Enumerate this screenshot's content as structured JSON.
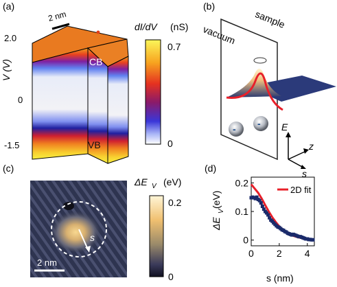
{
  "panel_a": {
    "label": "(a)",
    "scalebar": "2 nm",
    "ylabel": "V (V)",
    "yticks": [
      "2.0",
      "0",
      "-1.5"
    ],
    "cb_label": "CB",
    "vb_label": "VB",
    "colorbar_title": "dI/dV",
    "colorbar_unit": "(nS)",
    "colorbar_max": "0.7",
    "colorbar_min": "0"
  },
  "panel_b": {
    "label": "(b)",
    "vacuum": "vacuum",
    "sample": "sample",
    "charge1": "-",
    "charge2": "-",
    "axis_E": "E",
    "axis_z": "z",
    "axis_s": "s"
  },
  "panel_c": {
    "label": "(c)",
    "scalebar": "2 nm",
    "s_label": "s",
    "colorbar_title": "ΔE",
    "colorbar_sub": "V",
    "colorbar_unit": "(eV)",
    "colorbar_max": "0.2",
    "colorbar_min": "0"
  },
  "panel_d": {
    "label": "(d)",
    "legend": "2D fit",
    "ylabel_main": "ΔE",
    "ylabel_sub": "V",
    "ylabel_unit": "(eV)",
    "xlabel": "s (nm)",
    "colors": {
      "fit": "#e8202a",
      "data": "#1a2a6a"
    }
  },
  "chart_data": {
    "type": "scatter",
    "xlabel": "s (nm)",
    "ylabel": "ΔE_V (eV)",
    "xlim": [
      0,
      4.5
    ],
    "ylim": [
      -0.02,
      0.22
    ],
    "xticks": [
      "0",
      "2",
      "4"
    ],
    "yticks": [
      "0",
      "0.1",
      "0.2"
    ],
    "legend": "top-right",
    "series": [
      {
        "name": "data",
        "x": [
          0.0,
          0.1,
          0.2,
          0.3,
          0.4,
          0.5,
          0.6,
          0.7,
          0.8,
          0.9,
          1.0,
          1.1,
          1.2,
          1.3,
          1.4,
          1.5,
          1.6,
          1.7,
          1.8,
          1.9,
          2.0,
          2.1,
          2.2,
          2.3,
          2.4,
          2.5,
          2.6,
          2.7,
          2.8,
          2.9,
          3.0,
          3.1,
          3.2,
          3.3,
          3.4,
          3.5,
          3.6,
          3.7,
          3.8,
          3.9,
          4.0,
          4.1,
          4.2,
          4.3,
          4.4
        ],
        "y": [
          0.148,
          0.15,
          0.148,
          0.145,
          0.15,
          0.142,
          0.138,
          0.13,
          0.118,
          0.108,
          0.1,
          0.095,
          0.088,
          0.078,
          0.07,
          0.066,
          0.06,
          0.055,
          0.05,
          0.046,
          0.044,
          0.04,
          0.036,
          0.034,
          0.03,
          0.028,
          0.024,
          0.022,
          0.02,
          0.018,
          0.02,
          0.018,
          0.016,
          0.014,
          0.012,
          0.012,
          0.01,
          0.008,
          0.006,
          0.004,
          0.004,
          0.002,
          0.002,
          0.001,
          0.001
        ]
      },
      {
        "name": "2D fit",
        "x": [
          0.0,
          0.25,
          0.5,
          0.75,
          1.0,
          1.25,
          1.5,
          1.75,
          2.0,
          2.25,
          2.5,
          2.75,
          3.0,
          3.25,
          3.5,
          3.75,
          4.0,
          4.25,
          4.5
        ],
        "y": [
          0.195,
          0.18,
          0.165,
          0.145,
          0.122,
          0.1,
          0.08,
          0.063,
          0.048,
          0.036,
          0.027,
          0.02,
          0.015,
          0.011,
          0.008,
          0.005,
          0.004,
          0.003,
          0.002
        ]
      }
    ]
  }
}
